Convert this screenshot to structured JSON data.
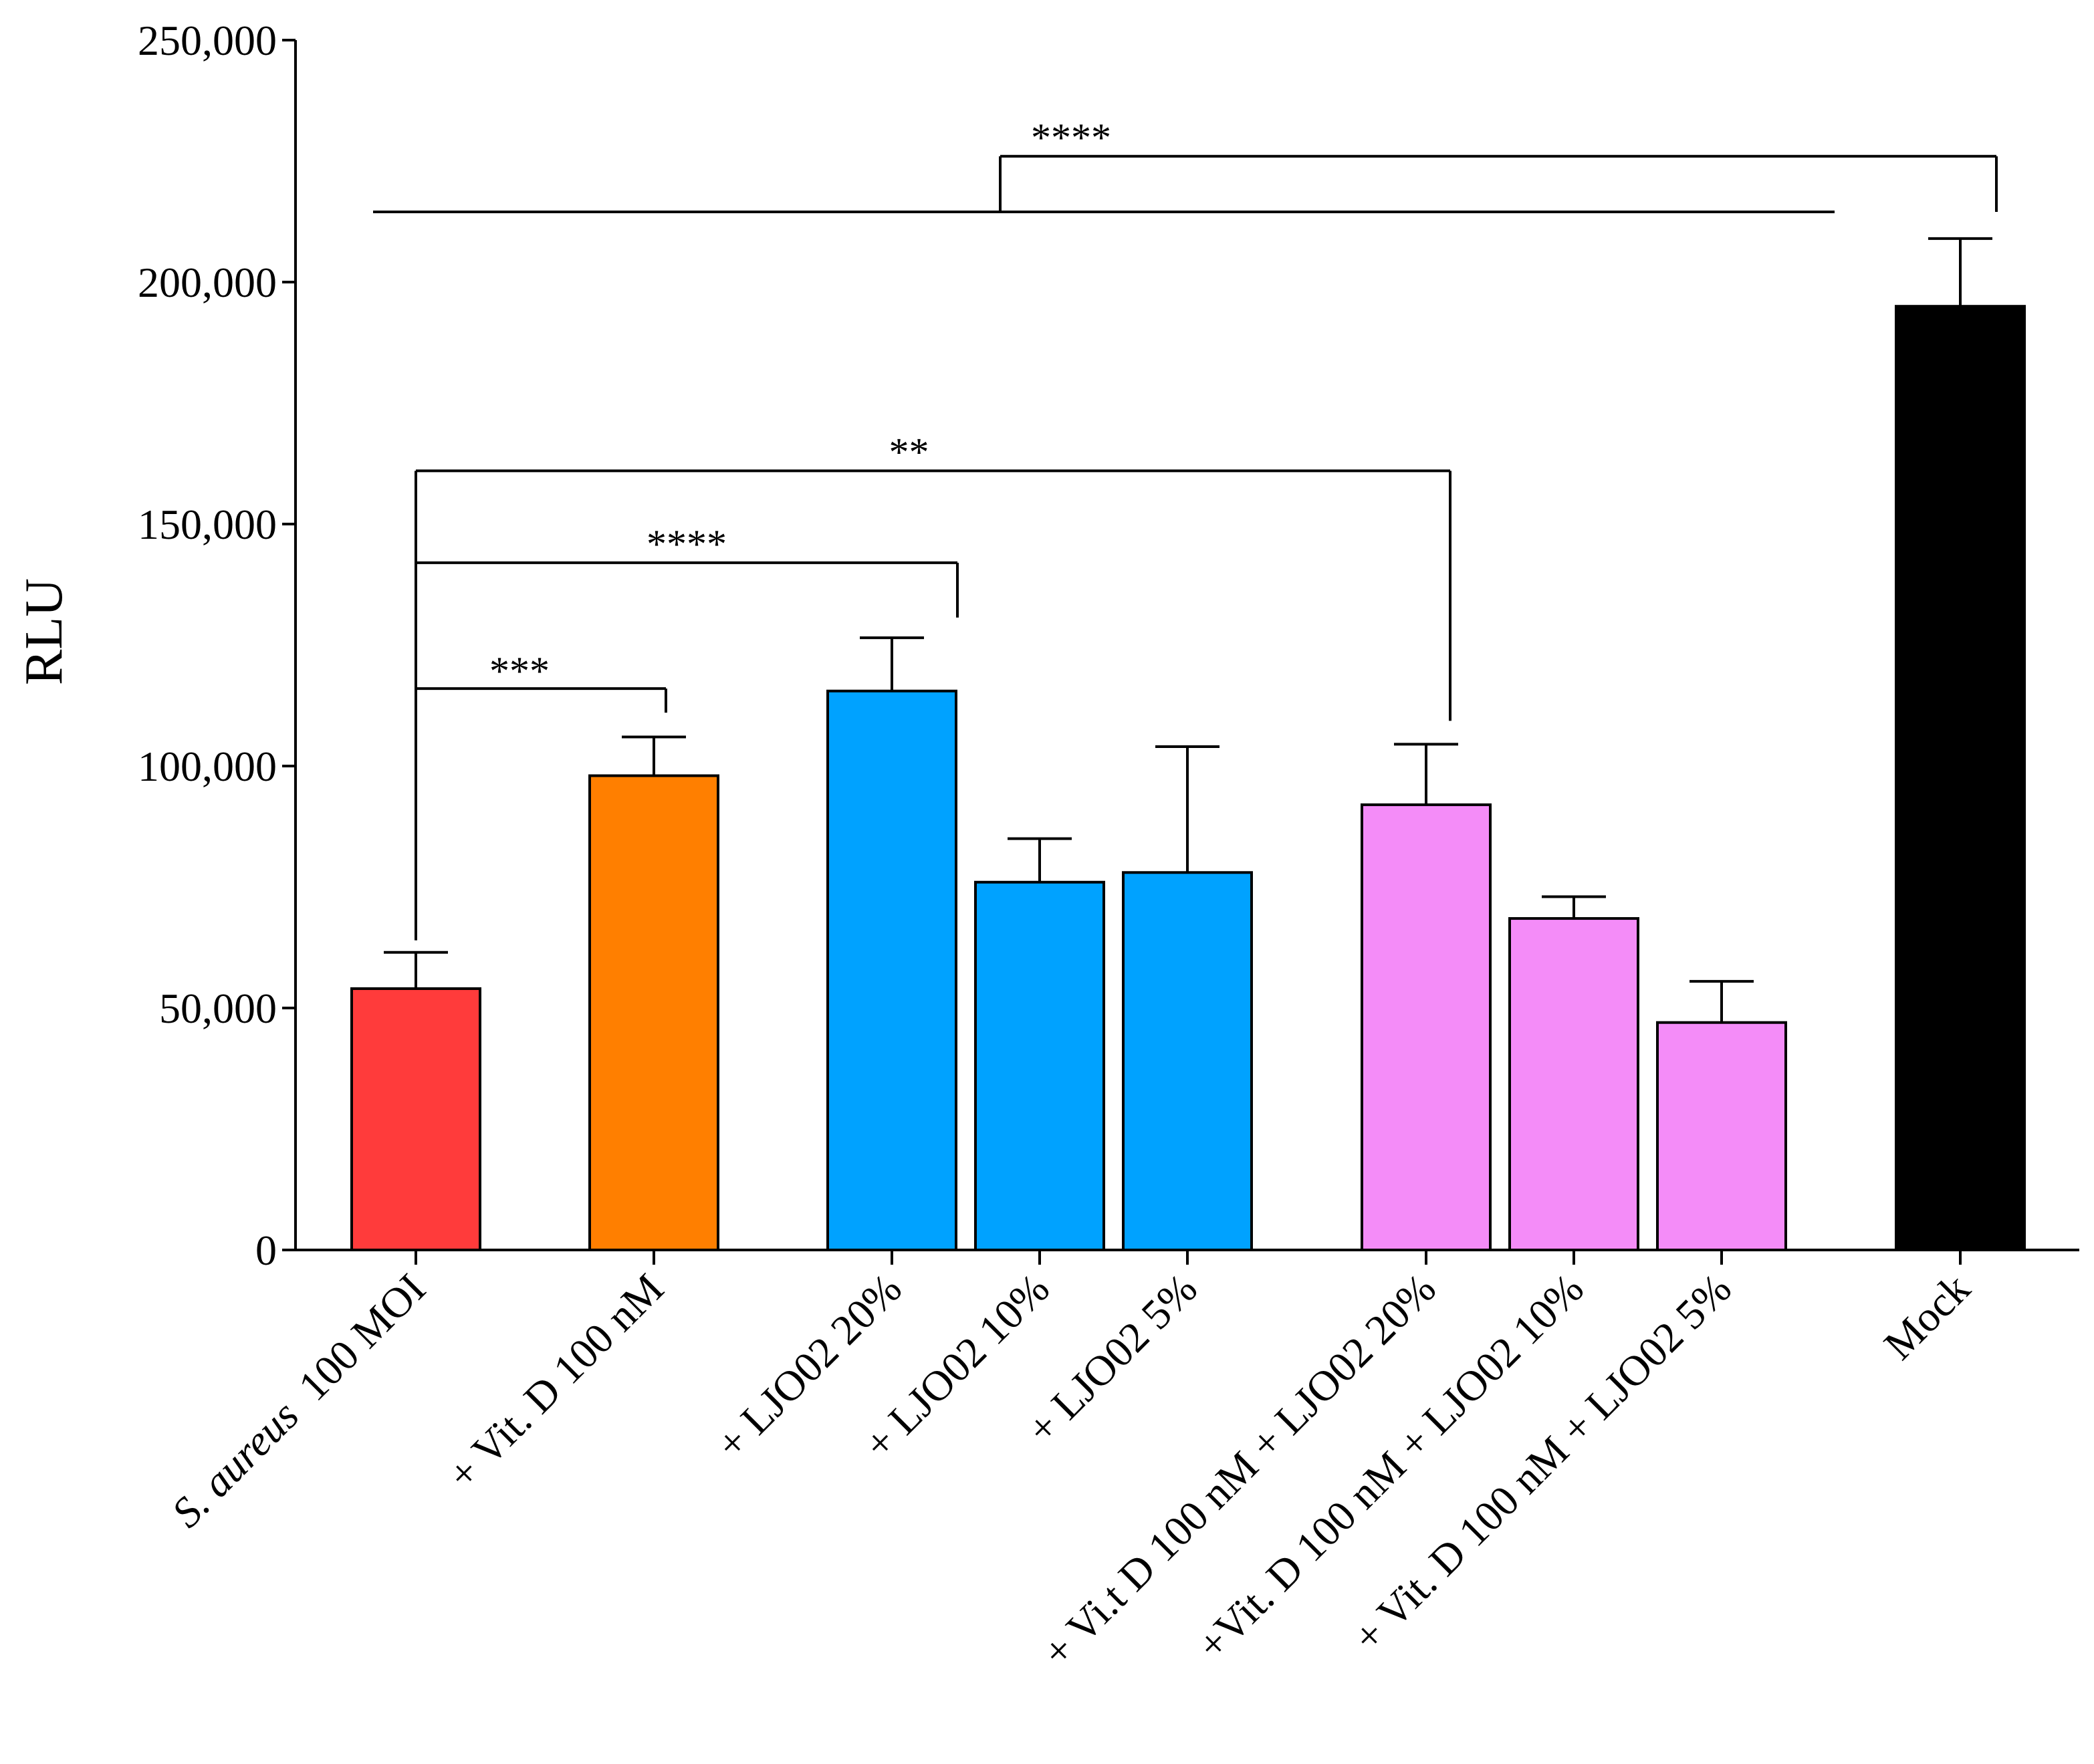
{
  "chart_data": {
    "type": "bar",
    "title": "",
    "xlabel": "",
    "ylabel": "RLU",
    "ylim": [
      0,
      250000
    ],
    "yticks": [
      0,
      50000,
      100000,
      150000,
      200000,
      250000
    ],
    "ytick_labels": [
      "0",
      "50,000",
      "100,000",
      "150,000",
      "200,000",
      "250,000"
    ],
    "grid": false,
    "legend": "none",
    "categories": [
      {
        "prefix": "",
        "italic": "S. aureus",
        "suffix": "  100 MOI"
      },
      {
        "prefix": "+ Vit. D 100 nM",
        "italic": "",
        "suffix": ""
      },
      {
        "prefix": "+ LJO02 20%",
        "italic": "",
        "suffix": ""
      },
      {
        "prefix": "+ LJO02 10%",
        "italic": "",
        "suffix": ""
      },
      {
        "prefix": "+ LJO02 5%",
        "italic": "",
        "suffix": ""
      },
      {
        "prefix": "+ Vi.t D 100 nM + LJO02 20%",
        "italic": "",
        "suffix": ""
      },
      {
        "prefix": "+Vit. D 100 nM +  LJO02 10%",
        "italic": "",
        "suffix": ""
      },
      {
        "prefix": "+ Vit. D 100 nM + LJO02 5%",
        "italic": "",
        "suffix": ""
      },
      {
        "prefix": "Mock",
        "italic": "",
        "suffix": ""
      }
    ],
    "values": [
      54000,
      98000,
      115500,
      76000,
      78000,
      92000,
      68500,
      47000,
      195000
    ],
    "error_upper": [
      61500,
      106000,
      126500,
      85000,
      104000,
      104500,
      73000,
      55500,
      209000
    ],
    "colors": [
      "#ff3b3b",
      "#ff7f00",
      "#00a2ff",
      "#00a2ff",
      "#00a2ff",
      "#f48cf8",
      "#f48cf8",
      "#f48cf8",
      "#000000"
    ],
    "significance": [
      {
        "from": 0,
        "to": 1,
        "level": 116000,
        "label": "***"
      },
      {
        "from": 0,
        "to": 2,
        "level": 142000,
        "label": "****"
      },
      {
        "from": 0,
        "to": 5,
        "level": 161000,
        "label": "**"
      },
      {
        "from": "group 0-7",
        "to": 8,
        "level": 226000,
        "label": "****"
      }
    ]
  }
}
